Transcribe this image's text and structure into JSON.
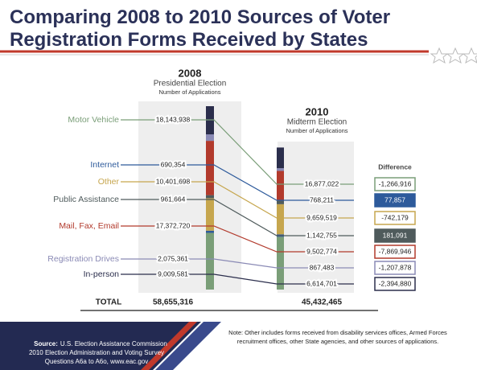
{
  "chart_data": {
    "type": "stacked_bar",
    "title": "Comparing 2008 to 2010 Sources of Voter Registration Forms Received by States",
    "categories": [
      "2008",
      "2010"
    ],
    "subtitles": [
      "Presidential Election",
      "Midterm  Election"
    ],
    "units_labels": [
      "Number of Applications",
      "Number of Applications"
    ],
    "difference_title": "Difference",
    "series": [
      {
        "name": "Motor Vehicle",
        "color": "#7a9e78",
        "values": [
          18143938,
          16877022
        ],
        "value_labels": [
          "18,143,938",
          "16,877,022"
        ],
        "difference": -1266916,
        "difference_label": "-1,266,916"
      },
      {
        "name": "Internet",
        "color": "#2d5a9b",
        "values": [
          690354,
          768211
        ],
        "value_labels": [
          "690,354",
          "768,211"
        ],
        "difference": 77857,
        "difference_label": "77,857"
      },
      {
        "name": "Other",
        "color": "#c6a64e",
        "values": [
          10401698,
          9659519
        ],
        "value_labels": [
          "10,401,698",
          "9,659,519"
        ],
        "difference": -742179,
        "difference_label": "-742,179"
      },
      {
        "name": "Public Assistance",
        "color": "#4f5b5c",
        "values": [
          961664,
          1142755
        ],
        "value_labels": [
          "961,664",
          "1,142,755"
        ],
        "difference": 181091,
        "difference_label": "181,091"
      },
      {
        "name": "Mail, Fax, Email",
        "color": "#b23a2c",
        "values": [
          17372720,
          9502774
        ],
        "value_labels": [
          "17,372,720",
          "9,502,774"
        ],
        "difference": -7869946,
        "difference_label": "-7,869,946"
      },
      {
        "name": "Registration Drives",
        "color": "#8a8ab5",
        "values": [
          2075361,
          867483
        ],
        "value_labels": [
          "2,075,361",
          "867,483"
        ],
        "difference": -1207878,
        "difference_label": "-1,207,878"
      },
      {
        "name": "In-person",
        "color": "#2b2e4c",
        "values": [
          9009581,
          6614701
        ],
        "value_labels": [
          "9,009,581",
          "6,614,701"
        ],
        "difference": -2394880,
        "difference_label": "-2,394,880"
      }
    ],
    "total_label": "TOTAL",
    "totals": [
      58655316,
      45432465
    ],
    "total_labels": [
      "58,655,316",
      "45,432,465"
    ],
    "note_lines": [
      "Note: Other includes forms received from disability services offices, Armed Forces",
      "recruitment offices, other State agencies, and other sources of applications."
    ],
    "source_label": "Source:",
    "source_lines": [
      "U.S. Election Assistance Commission",
      "2010 Election Administration and Voting Survey",
      "Questions A6a to A6o, www.eac.gov"
    ]
  }
}
